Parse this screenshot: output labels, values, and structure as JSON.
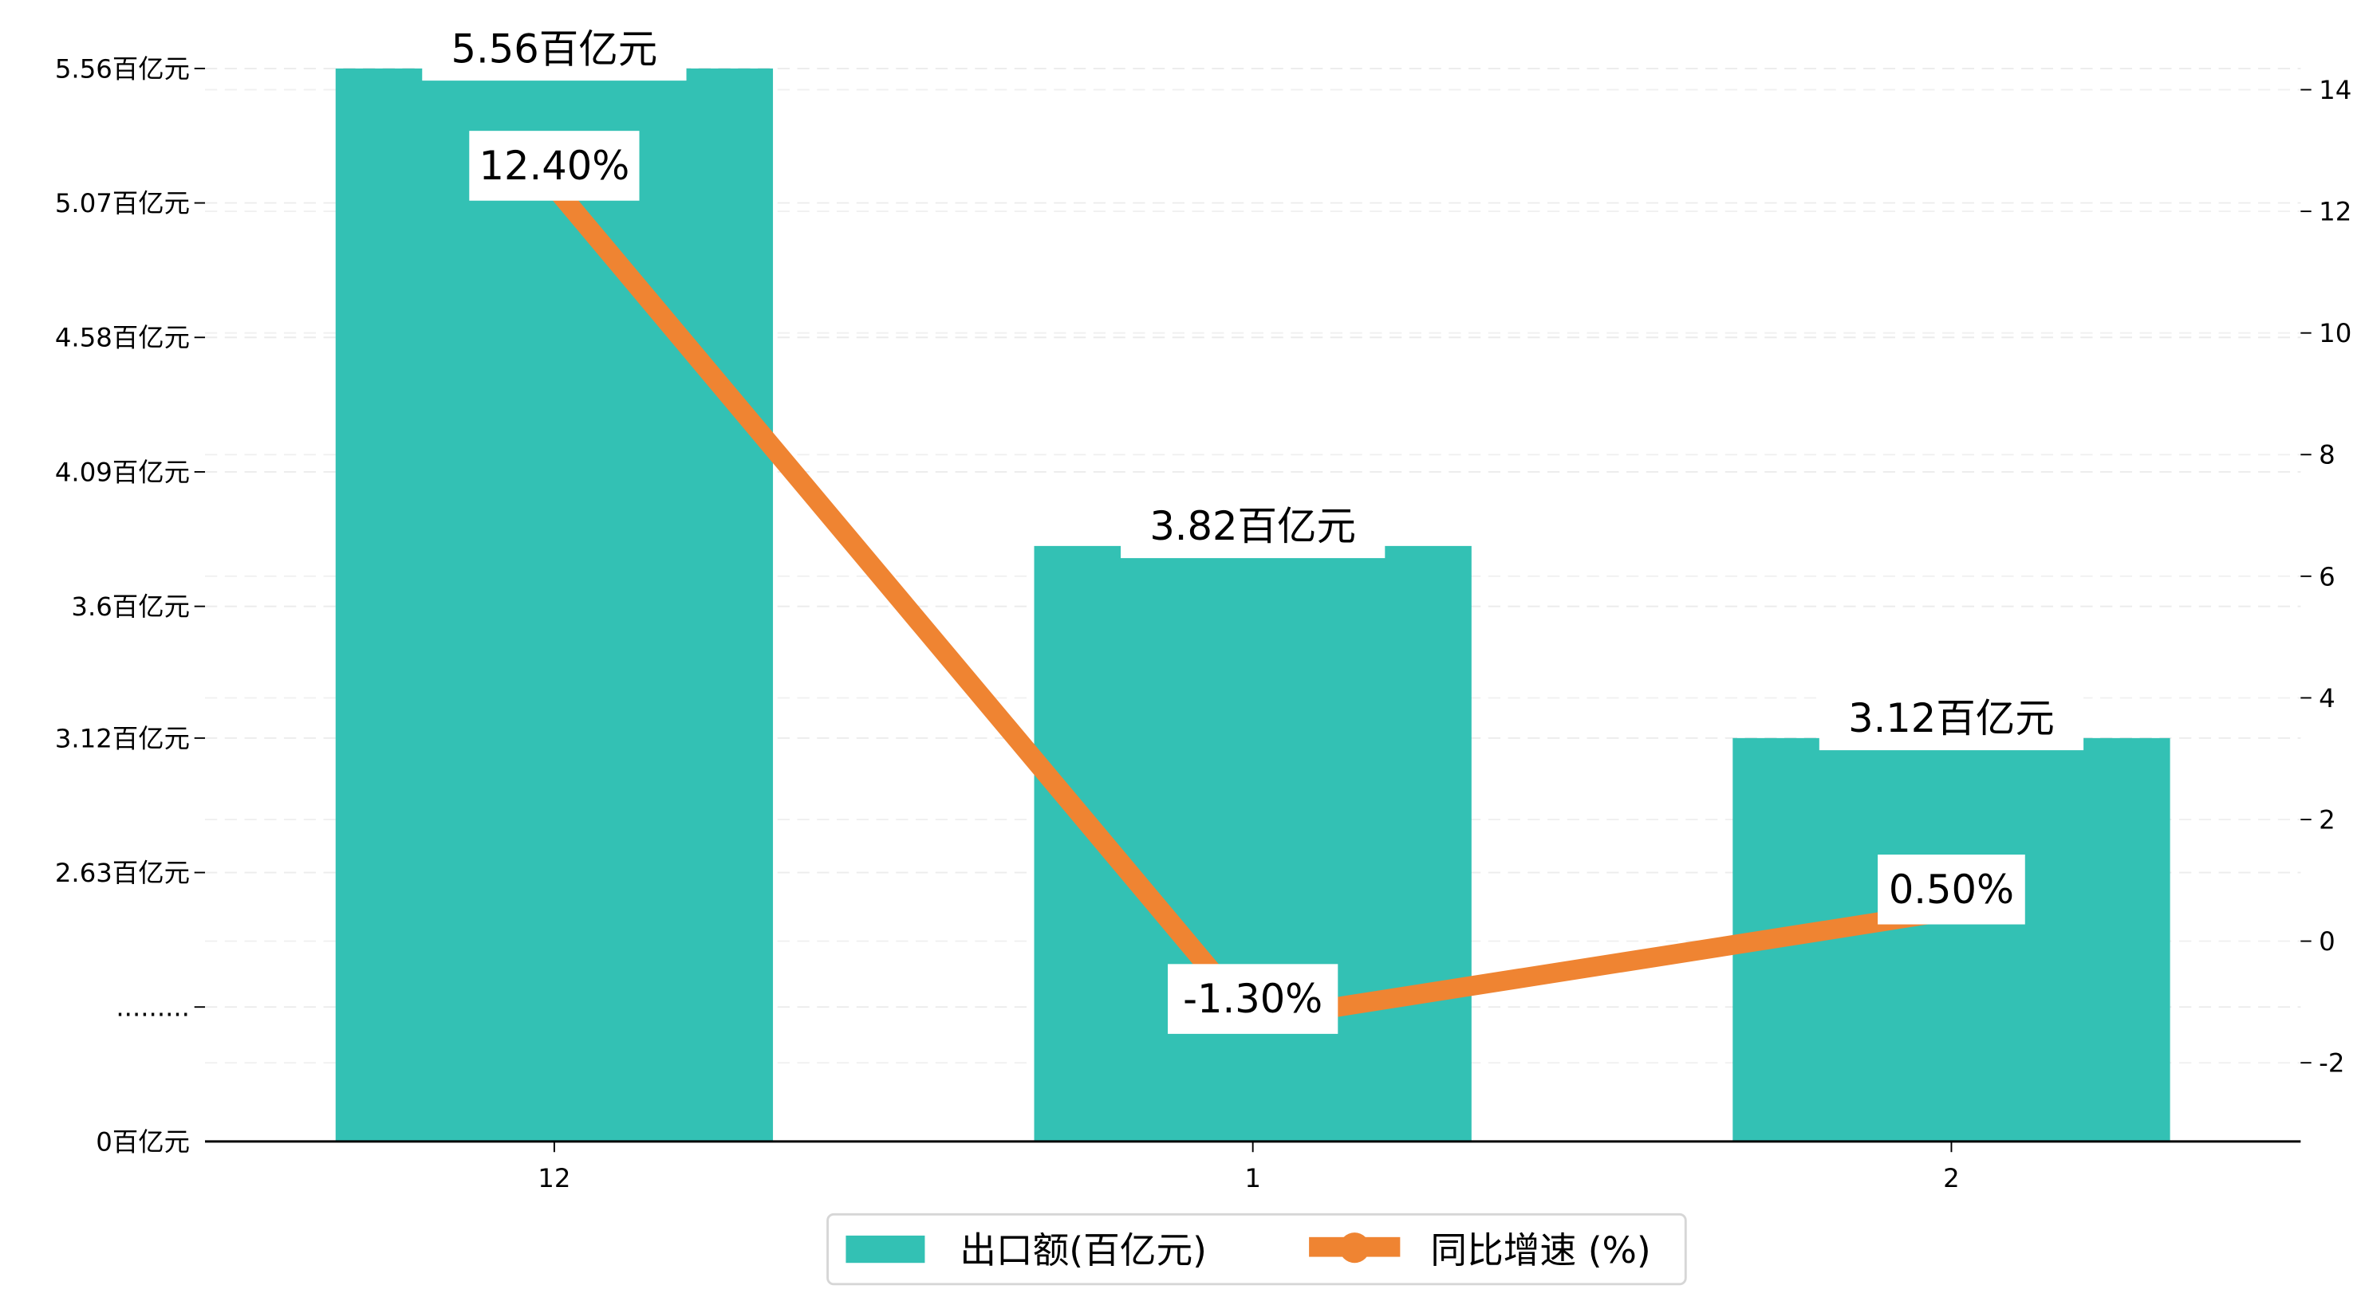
{
  "chart_data": {
    "type": "bar+line",
    "categories": [
      "12",
      "1",
      "2"
    ],
    "series": [
      {
        "name": "出口额(百亿元)",
        "type": "bar",
        "axis": "left",
        "values": [
          5.56,
          3.82,
          3.12
        ],
        "labels": [
          "5.56百亿元",
          "3.82百亿元",
          "3.12百亿元"
        ],
        "color": "#1fb8a8"
      },
      {
        "name": "同比增速 (%)",
        "type": "line",
        "axis": "right",
        "values": [
          12.4,
          -1.3,
          0.5
        ],
        "labels": [
          "12.40%",
          "-1.30%",
          "0.50%"
        ],
        "color": "#ef8432"
      }
    ],
    "left_axis": {
      "ticks": [
        {
          "value": 0,
          "label": "0百亿元"
        },
        {
          "value": 2.14,
          "label": "........."
        },
        {
          "value": 2.63,
          "label": "2.63百亿元"
        },
        {
          "value": 3.12,
          "label": "3.12百亿元"
        },
        {
          "value": 3.6,
          "label": "3.6百亿元"
        },
        {
          "value": 4.09,
          "label": "4.09百亿元"
        },
        {
          "value": 4.58,
          "label": "4.58百亿元"
        },
        {
          "value": 5.07,
          "label": "5.07百亿元"
        },
        {
          "value": 5.56,
          "label": "5.56百亿元"
        }
      ],
      "broken": true
    },
    "right_axis": {
      "ticks": [
        -2,
        0,
        2,
        4,
        6,
        8,
        10,
        12,
        14
      ],
      "ylim": [
        -3.3,
        15.3
      ]
    },
    "grid": true,
    "legend_position": "bottom-center",
    "xlabel": "",
    "ylabel": "",
    "title": ""
  }
}
